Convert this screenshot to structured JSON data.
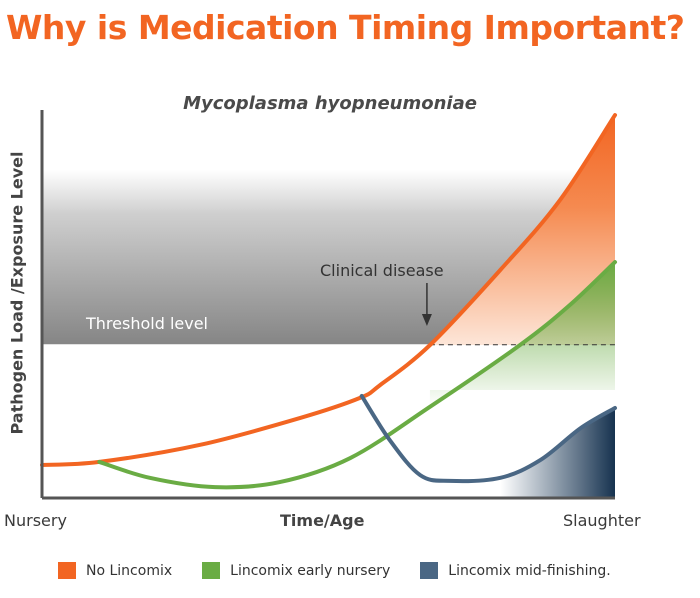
{
  "title": "Why is Medication Timing Important?",
  "chart_data": {
    "type": "line",
    "title": "Mycoplasma hyopneumoniae",
    "xlabel": "Time/Age",
    "ylabel": "Pathogen Load /Exposure Level",
    "x_tick_labels": {
      "min": "Nursery",
      "max": "Slaughter"
    },
    "xlim": [
      0,
      100
    ],
    "ylim": [
      0,
      100
    ],
    "threshold": {
      "value": 39.5,
      "label": "Threshold level"
    },
    "annotation": {
      "text": "Clinical disease",
      "x": 67.7,
      "y": 39.5
    },
    "series": [
      {
        "name": "No Lincomix",
        "color": "#f26522",
        "x": [
          0,
          10,
          27.6,
          45,
          55.5,
          59,
          67.7,
          80,
          90.4,
          100
        ],
        "y": [
          8.5,
          9.3,
          13.7,
          20.6,
          25.8,
          29.1,
          39.4,
          58.8,
          76.8,
          98.7
        ]
      },
      {
        "name": "Lincomix early nursery",
        "color": "#6aac44",
        "x": [
          10,
          18.8,
          30.2,
          41.5,
          53.8,
          67.7,
          83.4,
          92.1,
          100
        ],
        "y": [
          9.3,
          5.2,
          2.8,
          4.1,
          10.3,
          23.5,
          39.4,
          49.7,
          60.8
        ]
      },
      {
        "name": "Lincomix mid-finishing.",
        "color": "#4a6784",
        "x": [
          55.8,
          60.7,
          66,
          71.2,
          80,
          87,
          94,
          100
        ],
        "y": [
          26.3,
          14.9,
          5.9,
          4.4,
          5.2,
          9.8,
          18,
          23.2
        ]
      }
    ]
  }
}
